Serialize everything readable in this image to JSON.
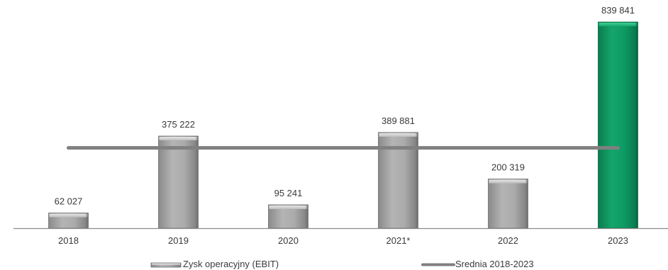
{
  "chart_data": {
    "type": "bar",
    "title": "",
    "xlabel": "",
    "ylabel": "",
    "categories": [
      "2018",
      "2019",
      "2020",
      "2021*",
      "2022",
      "2023"
    ],
    "series": [
      {
        "name": "Zysk operacyjny (EBIT)",
        "type": "bar",
        "values": [
          62027,
          375222,
          95241,
          389881,
          200319,
          839841
        ],
        "value_labels": [
          "62 027",
          "375 222",
          "95 241",
          "389 881",
          "200 319",
          "839 841"
        ],
        "colors": [
          "#a6a6a6",
          "#a6a6a6",
          "#a6a6a6",
          "#a6a6a6",
          "#a6a6a6",
          "#0f9a63"
        ]
      },
      {
        "name": "Srednia 2018-2023",
        "type": "line",
        "values": [
          327089,
          327089,
          327089,
          327089,
          327089,
          327089
        ],
        "color": "#808080"
      }
    ],
    "ylim": [
      0,
      840000
    ],
    "grid": false,
    "legend_position": "bottom"
  },
  "legend": {
    "items": [
      {
        "label": "Zysk operacyjny (EBIT)",
        "icon": "bar-swatch-icon"
      },
      {
        "label": "Srednia 2018-2023",
        "icon": "line-swatch-icon"
      }
    ]
  }
}
